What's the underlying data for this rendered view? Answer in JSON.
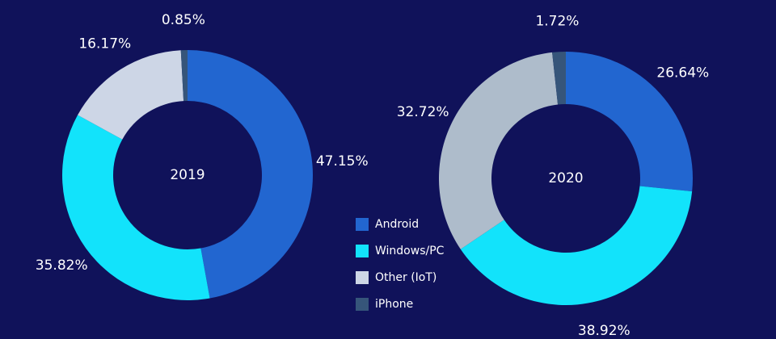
{
  "chart_data": [
    {
      "type": "donut",
      "title": "2019",
      "categories": [
        "Android",
        "Windows/PC",
        "Other (IoT)",
        "iPhone"
      ],
      "values": [
        47.15,
        35.82,
        16.17,
        0.85
      ],
      "value_labels": [
        "47.15%",
        "35.82%",
        "16.17%",
        "0.85%"
      ],
      "colors": [
        "#2266d0",
        "#12e3fb",
        "#cdd6e6",
        "#36557a"
      ]
    },
    {
      "type": "donut",
      "title": "2020",
      "categories": [
        "Android",
        "Windows/PC",
        "Other (IoT)",
        "iPhone"
      ],
      "values": [
        26.64,
        38.92,
        32.72,
        1.72
      ],
      "value_labels": [
        "26.64%",
        "38.92%",
        "32.72%",
        "1.72%"
      ],
      "colors": [
        "#2266d0",
        "#12e3fb",
        "#aebccb",
        "#36557a"
      ]
    }
  ]
}
